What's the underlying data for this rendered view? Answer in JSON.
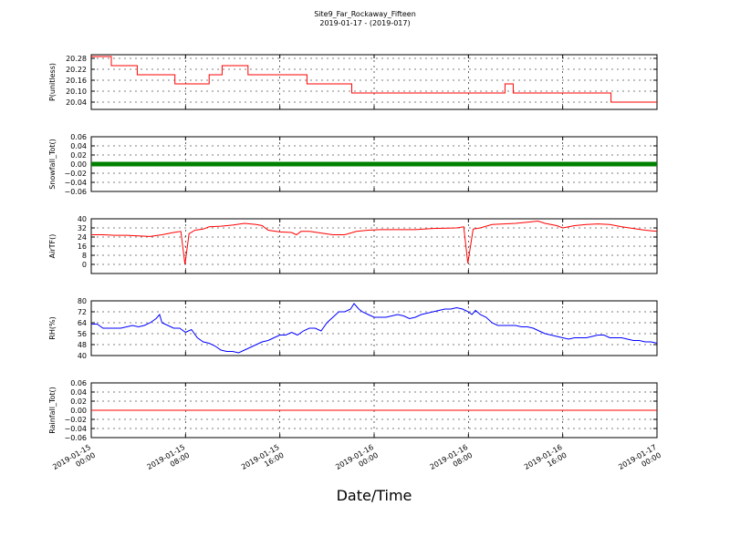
{
  "figure": {
    "title": "Site9_Far_Rockaway_Fifteen",
    "subtitle": "2019-01-17 - (2019-017)",
    "xlabel": "Date/Time"
  },
  "x_axis": {
    "start": "2019-01-15 00:00",
    "end": "2019-01-17 00:00",
    "tick_labels": [
      [
        "2019-01-15",
        "00:00"
      ],
      [
        "2019-01-15",
        "08:00"
      ],
      [
        "2019-01-15",
        "16:00"
      ],
      [
        "2019-01-16",
        "00:00"
      ],
      [
        "2019-01-16",
        "08:00"
      ],
      [
        "2019-01-16",
        "16:00"
      ],
      [
        "2019-01-17",
        "00:00"
      ]
    ]
  },
  "chart_data": [
    {
      "type": "line",
      "ylabel": "P(unitless)",
      "ylim": [
        20.0,
        20.3
      ],
      "yticks": [
        "20.04",
        "20.10",
        "20.16",
        "20.22",
        "20.28"
      ],
      "grid": true,
      "color": "#ff0000",
      "step": true,
      "series": [
        {
          "points": [
            [
              0,
              20.29
            ],
            [
              1.7,
              20.29
            ],
            [
              1.7,
              20.24
            ],
            [
              3.9,
              20.24
            ],
            [
              3.9,
              20.19
            ],
            [
              7.1,
              20.19
            ],
            [
              7.1,
              20.14
            ],
            [
              10.0,
              20.14
            ],
            [
              10.0,
              20.19
            ],
            [
              11.1,
              20.19
            ],
            [
              11.1,
              20.24
            ],
            [
              13.3,
              20.24
            ],
            [
              13.3,
              20.19
            ],
            [
              18.3,
              20.19
            ],
            [
              18.3,
              20.14
            ],
            [
              22.1,
              20.14
            ],
            [
              22.1,
              20.09
            ],
            [
              35.1,
              20.09
            ],
            [
              35.1,
              20.14
            ],
            [
              35.8,
              20.14
            ],
            [
              35.8,
              20.09
            ],
            [
              44.1,
              20.09
            ],
            [
              44.1,
              20.04
            ],
            [
              48.0,
              20.04
            ]
          ]
        }
      ]
    },
    {
      "type": "line",
      "ylabel": "Snowfall_Tot()",
      "ylim": [
        -0.06,
        0.06
      ],
      "yticks": [
        "−0.06",
        "−0.04",
        "−0.02",
        "0.00",
        "0.02",
        "0.04",
        "0.06"
      ],
      "grid": true,
      "color": "#008000",
      "markers": true,
      "series": [
        {
          "constant": 0.0
        }
      ]
    },
    {
      "type": "line",
      "ylabel": "AirTF()",
      "ylim": [
        -8,
        40
      ],
      "yticks": [
        "0",
        "8",
        "16",
        "24",
        "32",
        "40"
      ],
      "grid": true,
      "color": "#ff0000",
      "series": [
        {
          "points": [
            [
              0,
              26
            ],
            [
              1,
              26
            ],
            [
              2,
              25.5
            ],
            [
              3,
              25.5
            ],
            [
              4,
              25
            ],
            [
              5,
              24.5
            ],
            [
              6,
              26
            ],
            [
              7,
              28
            ],
            [
              7.6,
              29
            ],
            [
              7.95,
              0
            ],
            [
              8.3,
              27
            ],
            [
              8.8,
              30
            ],
            [
              9.5,
              31
            ],
            [
              10,
              33
            ],
            [
              11,
              33.5
            ],
            [
              12,
              34.5
            ],
            [
              13,
              36
            ],
            [
              14,
              35
            ],
            [
              14.5,
              34
            ],
            [
              15,
              30
            ],
            [
              16,
              28.5
            ],
            [
              17,
              28
            ],
            [
              17.4,
              26
            ],
            [
              17.8,
              29
            ],
            [
              18.5,
              29
            ],
            [
              19.5,
              27.5
            ],
            [
              20.5,
              26
            ],
            [
              21.5,
              26
            ],
            [
              22.5,
              29
            ],
            [
              23.5,
              30
            ],
            [
              24.5,
              30.5
            ],
            [
              26,
              30.5
            ],
            [
              27.5,
              30.5
            ],
            [
              29,
              31.5
            ],
            [
              31,
              32
            ],
            [
              31.6,
              33
            ],
            [
              31.95,
              1
            ],
            [
              32.4,
              31
            ],
            [
              33,
              32
            ],
            [
              34,
              35
            ],
            [
              35,
              35.5
            ],
            [
              36,
              36
            ],
            [
              37,
              37
            ],
            [
              37.9,
              38
            ],
            [
              38.5,
              36
            ],
            [
              39.5,
              34
            ],
            [
              40,
              32
            ],
            [
              41,
              34
            ],
            [
              42,
              35
            ],
            [
              43,
              35.5
            ],
            [
              44,
              35
            ],
            [
              45,
              33
            ],
            [
              46,
              31.5
            ],
            [
              47,
              30
            ],
            [
              48,
              29
            ]
          ]
        }
      ]
    },
    {
      "type": "line",
      "ylabel": "RH(%)",
      "ylim": [
        40,
        80
      ],
      "yticks": [
        "40",
        "48",
        "56",
        "64",
        "72",
        "80"
      ],
      "grid": true,
      "color": "#0000ff",
      "series": [
        {
          "points": [
            [
              0,
              63
            ],
            [
              0.5,
              63
            ],
            [
              1,
              60
            ],
            [
              1.5,
              60
            ],
            [
              2,
              60
            ],
            [
              2.5,
              60
            ],
            [
              3,
              61
            ],
            [
              3.5,
              62
            ],
            [
              4,
              61
            ],
            [
              4.5,
              62
            ],
            [
              5,
              64
            ],
            [
              5.5,
              67
            ],
            [
              5.8,
              70
            ],
            [
              6,
              64
            ],
            [
              6.5,
              62
            ],
            [
              7,
              60
            ],
            [
              7.5,
              60
            ],
            [
              8,
              57
            ],
            [
              8.5,
              59
            ],
            [
              9,
              53
            ],
            [
              9.5,
              50
            ],
            [
              10,
              49
            ],
            [
              10.5,
              47
            ],
            [
              11,
              44
            ],
            [
              11.5,
              43
            ],
            [
              12,
              43
            ],
            [
              12.5,
              42
            ],
            [
              13,
              44
            ],
            [
              13.5,
              46
            ],
            [
              14,
              48
            ],
            [
              14.5,
              50
            ],
            [
              15,
              51
            ],
            [
              15.5,
              53
            ],
            [
              16,
              55
            ],
            [
              16.5,
              55
            ],
            [
              17,
              57
            ],
            [
              17.5,
              55
            ],
            [
              18,
              58
            ],
            [
              18.5,
              60
            ],
            [
              19,
              60
            ],
            [
              19.5,
              58
            ],
            [
              20,
              64
            ],
            [
              20.5,
              68
            ],
            [
              21,
              72
            ],
            [
              21.5,
              72
            ],
            [
              22,
              74
            ],
            [
              22.3,
              78
            ],
            [
              22.7,
              74
            ],
            [
              23,
              72
            ],
            [
              23.5,
              70
            ],
            [
              24,
              68
            ],
            [
              24.5,
              68
            ],
            [
              25,
              68
            ],
            [
              25.5,
              69
            ],
            [
              26,
              70
            ],
            [
              26.5,
              69
            ],
            [
              27,
              67
            ],
            [
              27.5,
              68
            ],
            [
              28,
              70
            ],
            [
              28.5,
              71
            ],
            [
              29,
              72
            ],
            [
              29.5,
              73
            ],
            [
              30,
              74
            ],
            [
              30.5,
              74
            ],
            [
              31,
              75
            ],
            [
              31.5,
              74
            ],
            [
              32,
              72
            ],
            [
              32.3,
              70
            ],
            [
              32.6,
              73
            ],
            [
              33,
              70
            ],
            [
              33.5,
              68
            ],
            [
              34,
              64
            ],
            [
              34.5,
              62
            ],
            [
              35,
              62
            ],
            [
              35.5,
              62
            ],
            [
              36,
              62
            ],
            [
              36.5,
              61
            ],
            [
              37,
              61
            ],
            [
              37.5,
              60
            ],
            [
              38,
              58
            ],
            [
              38.5,
              56
            ],
            [
              39,
              55
            ],
            [
              39.5,
              54
            ],
            [
              40,
              53
            ],
            [
              40.5,
              52
            ],
            [
              41,
              53
            ],
            [
              41.5,
              53
            ],
            [
              42,
              53
            ],
            [
              42.5,
              54
            ],
            [
              43,
              55
            ],
            [
              43.5,
              55
            ],
            [
              44,
              53
            ],
            [
              44.5,
              53
            ],
            [
              45,
              53
            ],
            [
              45.5,
              52
            ],
            [
              46,
              51
            ],
            [
              46.5,
              51
            ],
            [
              47,
              50
            ],
            [
              47.5,
              50
            ],
            [
              48,
              49
            ]
          ]
        }
      ]
    },
    {
      "type": "line",
      "ylabel": "Rainfall_Tot()",
      "ylim": [
        -0.06,
        0.06
      ],
      "yticks": [
        "−0.06",
        "−0.04",
        "−0.02",
        "0.00",
        "0.02",
        "0.04",
        "0.06"
      ],
      "grid": true,
      "color": "#ff0000",
      "series": [
        {
          "constant": 0.0
        }
      ]
    }
  ]
}
